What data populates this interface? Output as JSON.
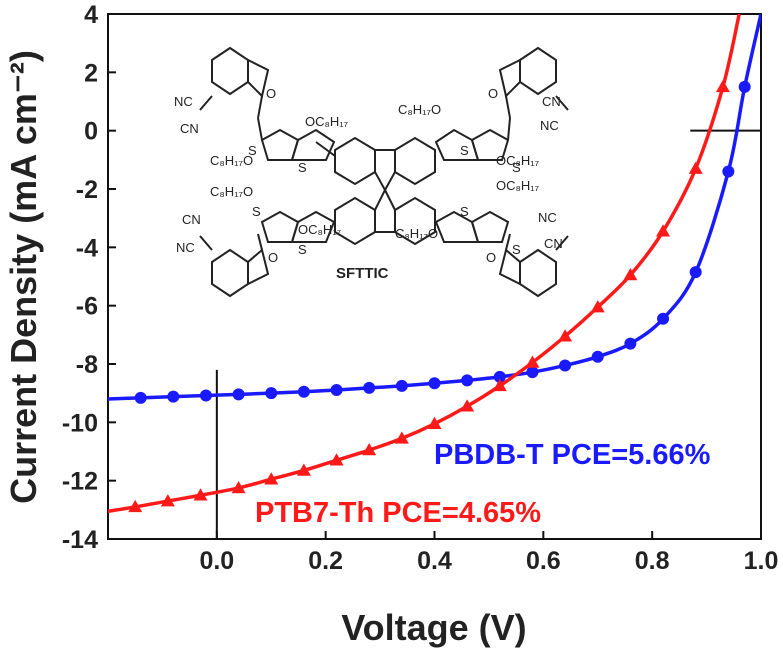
{
  "chart_data": {
    "type": "line",
    "xlabel": "Voltage (V)",
    "ylabel": "Current Density (mA cm⁻²)",
    "xlim": [
      -0.2,
      1.0
    ],
    "ylim": [
      -14,
      4
    ],
    "x_ticks": [
      "0.0",
      "0.2",
      "0.4",
      "0.6",
      "0.8",
      "1.0"
    ],
    "y_ticks": [
      "-14",
      "-12",
      "-10",
      "-8",
      "-6",
      "-4",
      "-2",
      "0",
      "2",
      "4"
    ],
    "grid": false,
    "series": [
      {
        "name": "PBDB-T",
        "label": "PBDB-T  PCE=5.66%",
        "color": "#1a1aff",
        "marker": "circle",
        "x": [
          -0.2,
          -0.14,
          -0.08,
          -0.02,
          0.04,
          0.1,
          0.16,
          0.22,
          0.28,
          0.34,
          0.4,
          0.46,
          0.52,
          0.58,
          0.64,
          0.7,
          0.76,
          0.82,
          0.88,
          0.94,
          0.97,
          1.0
        ],
        "values": [
          -9.2,
          -9.16,
          -9.12,
          -9.08,
          -9.04,
          -9.0,
          -8.95,
          -8.89,
          -8.82,
          -8.75,
          -8.66,
          -8.56,
          -8.44,
          -8.28,
          -8.05,
          -7.75,
          -7.3,
          -6.45,
          -4.85,
          -1.4,
          1.5,
          4.0
        ]
      },
      {
        "name": "PTB7-Th",
        "label": "PTB7-Th PCE=4.65%",
        "color": "#ff1a1a",
        "marker": "triangle",
        "x": [
          -0.2,
          -0.15,
          -0.09,
          -0.03,
          0.04,
          0.1,
          0.16,
          0.22,
          0.28,
          0.34,
          0.4,
          0.46,
          0.52,
          0.58,
          0.64,
          0.7,
          0.76,
          0.82,
          0.88,
          0.93,
          0.96
        ],
        "values": [
          -13.05,
          -12.9,
          -12.7,
          -12.5,
          -12.25,
          -11.95,
          -11.65,
          -11.3,
          -10.95,
          -10.55,
          -10.05,
          -9.45,
          -8.75,
          -7.95,
          -7.05,
          -6.05,
          -4.95,
          -3.45,
          -1.3,
          1.5,
          4.0
        ]
      }
    ],
    "inset": {
      "molecule_name": "SFTTIC",
      "labels": {
        "nc": "NC",
        "cn": "CN",
        "o": "O",
        "s": "S",
        "och": "OC₈H₁₇",
        "cho": "C₈H₁₇O"
      }
    }
  }
}
